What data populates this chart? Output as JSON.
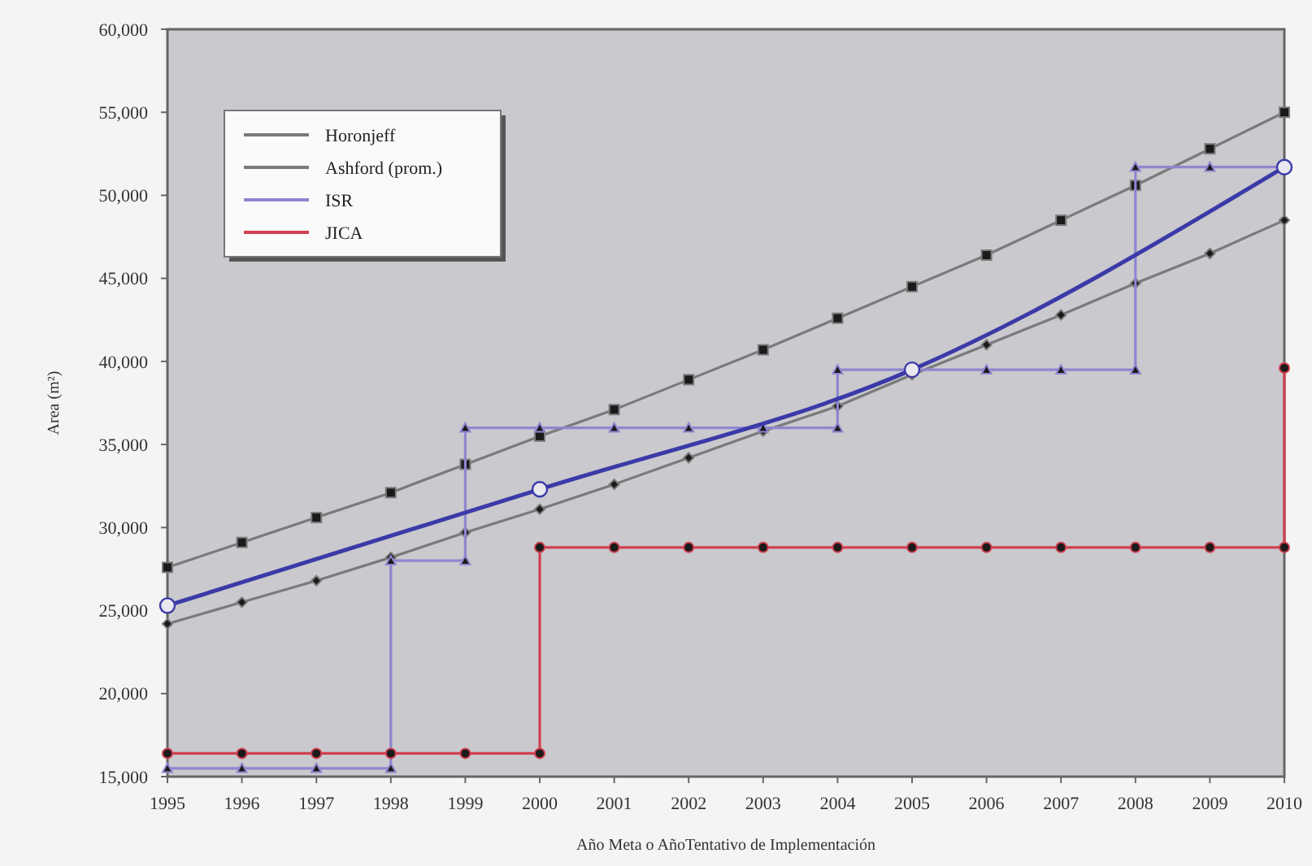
{
  "chart_data": {
    "type": "line",
    "xlabel": "Año Meta o AñoTentativo de Implementación",
    "ylabel": "Area (m²)",
    "xlim": [
      1995,
      2010
    ],
    "xticks": [
      1995,
      1996,
      1997,
      1998,
      1999,
      2000,
      2001,
      2002,
      2003,
      2004,
      2005,
      2006,
      2007,
      2008,
      2009,
      2010
    ],
    "ylim": [
      15000,
      60000
    ],
    "yticks": [
      {
        "value": 15000,
        "label": "15,000"
      },
      {
        "value": 20000,
        "label": "20,000"
      },
      {
        "value": 25000,
        "label": "25,000"
      },
      {
        "value": 30000,
        "label": "30,000"
      },
      {
        "value": 35000,
        "label": "35,000"
      },
      {
        "value": 40000,
        "label": "40,000"
      },
      {
        "value": 45000,
        "label": "45,000"
      },
      {
        "value": 50000,
        "label": "50,000"
      },
      {
        "value": 55000,
        "label": "55,000"
      },
      {
        "value": 60000,
        "label": "60,000"
      }
    ],
    "grid": false,
    "legend": "top left",
    "series": [
      {
        "name": "Horonjeff",
        "color": "#7a7a7a",
        "marker": "square",
        "x": [
          1995,
          1996,
          1997,
          1998,
          1999,
          2000,
          2001,
          2002,
          2003,
          2004,
          2005,
          2006,
          2007,
          2008,
          2009,
          2010
        ],
        "values": [
          27600,
          29100,
          30600,
          32100,
          33800,
          35500,
          37100,
          38900,
          40700,
          42600,
          44500,
          46400,
          48500,
          50600,
          52800,
          55000
        ]
      },
      {
        "name": "Ashford (prom.)",
        "color": "#7a7a7a",
        "marker": "diamond",
        "x": [
          1995,
          1996,
          1997,
          1998,
          1999,
          2000,
          2001,
          2002,
          2003,
          2004,
          2005,
          2006,
          2007,
          2008,
          2009,
          2010
        ],
        "values": [
          24200,
          25500,
          26800,
          28200,
          29700,
          31100,
          32600,
          34200,
          35800,
          37300,
          39200,
          41000,
          42800,
          44700,
          46500,
          48500
        ]
      },
      {
        "name": "ISR",
        "color": "#8f86d0",
        "marker": "triangle",
        "x": [
          1995,
          1996,
          1997,
          1998,
          1998,
          1999,
          1999,
          2000,
          2001,
          2002,
          2003,
          2004,
          2004,
          2005,
          2006,
          2007,
          2008,
          2008,
          2009,
          2010
        ],
        "values": [
          15500,
          15500,
          15500,
          15500,
          28000,
          28000,
          36000,
          36000,
          36000,
          36000,
          36000,
          36000,
          39500,
          39500,
          39500,
          39500,
          39500,
          51700,
          51700,
          51700
        ]
      },
      {
        "name": "JICA",
        "color": "#d04050",
        "marker": "circle",
        "x": [
          1995,
          1996,
          1997,
          1998,
          1999,
          2000,
          2000,
          2001,
          2002,
          2003,
          2004,
          2005,
          2006,
          2007,
          2008,
          2009,
          2010,
          2010
        ],
        "values": [
          16400,
          16400,
          16400,
          16400,
          16400,
          16400,
          28800,
          28800,
          28800,
          28800,
          28800,
          28800,
          28800,
          28800,
          28800,
          28800,
          28800,
          39600
        ]
      },
      {
        "color": "#3a3aa8",
        "marker": "circle",
        "x": [
          1995,
          2000,
          2005,
          2010
        ],
        "values": [
          25300,
          32300,
          39500,
          51700
        ]
      }
    ]
  }
}
